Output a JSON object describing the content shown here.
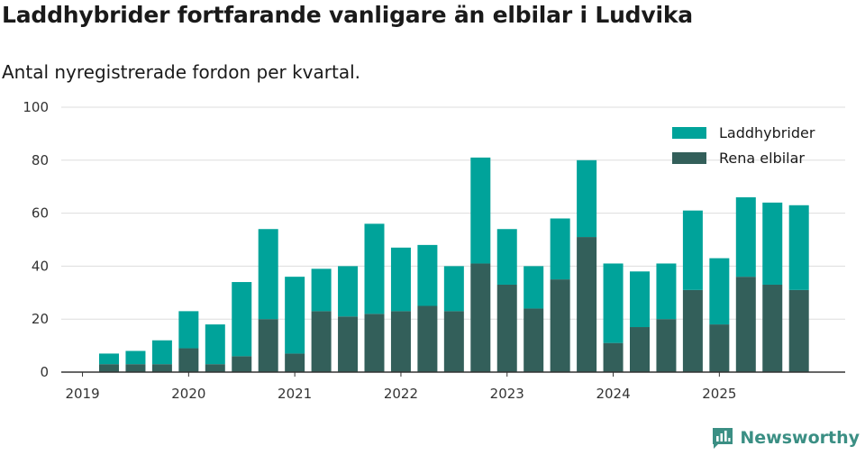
{
  "header": {
    "title": "Laddhybrider fortfarande vanligare än elbilar i Ludvika",
    "subtitle": "Antal nyregistrerade fordon per kvartal."
  },
  "brand": {
    "name": "Newsworthy",
    "color": "#3b8f84"
  },
  "chart_data": {
    "type": "bar",
    "stacked": true,
    "title": "Laddhybrider fortfarande vanligare än elbilar i Ludvika",
    "subtitle": "Antal nyregistrerade fordon per kvartal.",
    "xlabel": "",
    "ylabel": "",
    "ylim": [
      0,
      100
    ],
    "yticks": [
      0,
      20,
      40,
      60,
      80,
      100
    ],
    "x_tick_labels": [
      "2019",
      "2020",
      "2021",
      "2022",
      "2023",
      "2024",
      "2025"
    ],
    "categories": [
      "2019 Q2",
      "2019 Q3",
      "2019 Q4",
      "2020 Q1",
      "2020 Q2",
      "2020 Q3",
      "2020 Q4",
      "2021 Q1",
      "2021 Q2",
      "2021 Q3",
      "2021 Q4",
      "2022 Q1",
      "2022 Q2",
      "2022 Q3",
      "2022 Q4",
      "2023 Q1",
      "2023 Q2",
      "2023 Q3",
      "2023 Q4",
      "2024 Q1",
      "2024 Q2",
      "2024 Q3",
      "2024 Q4",
      "2025 Q1",
      "2025 Q2",
      "2025 Q3",
      "2025 Q4"
    ],
    "series": [
      {
        "name": "Rena elbilar",
        "color": "#335f5a",
        "values": [
          3,
          3,
          3,
          9,
          3,
          6,
          20,
          7,
          23,
          21,
          22,
          23,
          25,
          23,
          41,
          33,
          24,
          35,
          51,
          11,
          17,
          20,
          31,
          18,
          36,
          33,
          31
        ]
      },
      {
        "name": "Laddhybrider",
        "color": "#00a39a",
        "values": [
          4,
          5,
          9,
          14,
          15,
          28,
          34,
          29,
          16,
          19,
          34,
          24,
          23,
          17,
          40,
          21,
          16,
          23,
          29,
          30,
          21,
          21,
          30,
          25,
          30,
          31,
          32
        ]
      }
    ],
    "legend": {
      "position": "top-right",
      "order": [
        "Laddhybrider",
        "Rena elbilar"
      ]
    },
    "grid": true
  }
}
